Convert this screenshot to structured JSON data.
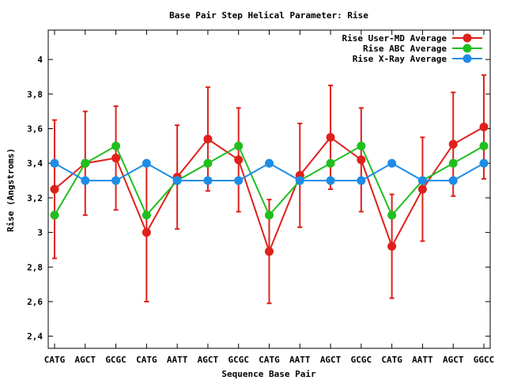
{
  "chart_data": {
    "type": "line",
    "title": "Base Pair Step Helical Parameter: Rise",
    "xlabel": "Sequence Base Pair",
    "ylabel": "Rise (Angstroms)",
    "categories": [
      "CATG",
      "AGCT",
      "GCGC",
      "CATG",
      "AATT",
      "AGCT",
      "GCGC",
      "CATG",
      "AATT",
      "AGCT",
      "GCGC",
      "CATG",
      "AATT",
      "AGCT",
      "GGCC"
    ],
    "ylim": [
      2.33,
      4.17
    ],
    "yticks": [
      2.4,
      2.6,
      2.8,
      3,
      3.2,
      3.4,
      3.6,
      3.8,
      4
    ],
    "ytick_labels": [
      "2,4",
      "2,6",
      "2,8",
      "3",
      "3,2",
      "3,4",
      "3,6",
      "3,8",
      "4"
    ],
    "grid": false,
    "legend_position": "top-right",
    "series": [
      {
        "name": "Rise User-MD Average",
        "color": "#e0201b",
        "values": [
          3.25,
          3.4,
          3.43,
          3.0,
          3.32,
          3.54,
          3.42,
          2.89,
          3.33,
          3.55,
          3.42,
          2.92,
          3.25,
          3.51,
          3.61
        ],
        "error": [
          0.4,
          0.3,
          0.3,
          0.4,
          0.3,
          0.3,
          0.3,
          0.3,
          0.3,
          0.3,
          0.3,
          0.3,
          0.3,
          0.3,
          0.3
        ]
      },
      {
        "name": "Rise ABC Average",
        "color": "#1fbf1f",
        "values": [
          3.1,
          3.4,
          3.5,
          3.1,
          3.3,
          3.4,
          3.5,
          3.1,
          3.3,
          3.4,
          3.5,
          3.1,
          3.3,
          3.4,
          3.5
        ]
      },
      {
        "name": "Rise X-Ray Average",
        "color": "#1e8ce6",
        "values": [
          3.4,
          3.3,
          3.3,
          3.4,
          3.3,
          3.3,
          3.3,
          3.4,
          3.3,
          3.3,
          3.3,
          3.4,
          3.3,
          3.3,
          3.4
        ]
      }
    ]
  }
}
